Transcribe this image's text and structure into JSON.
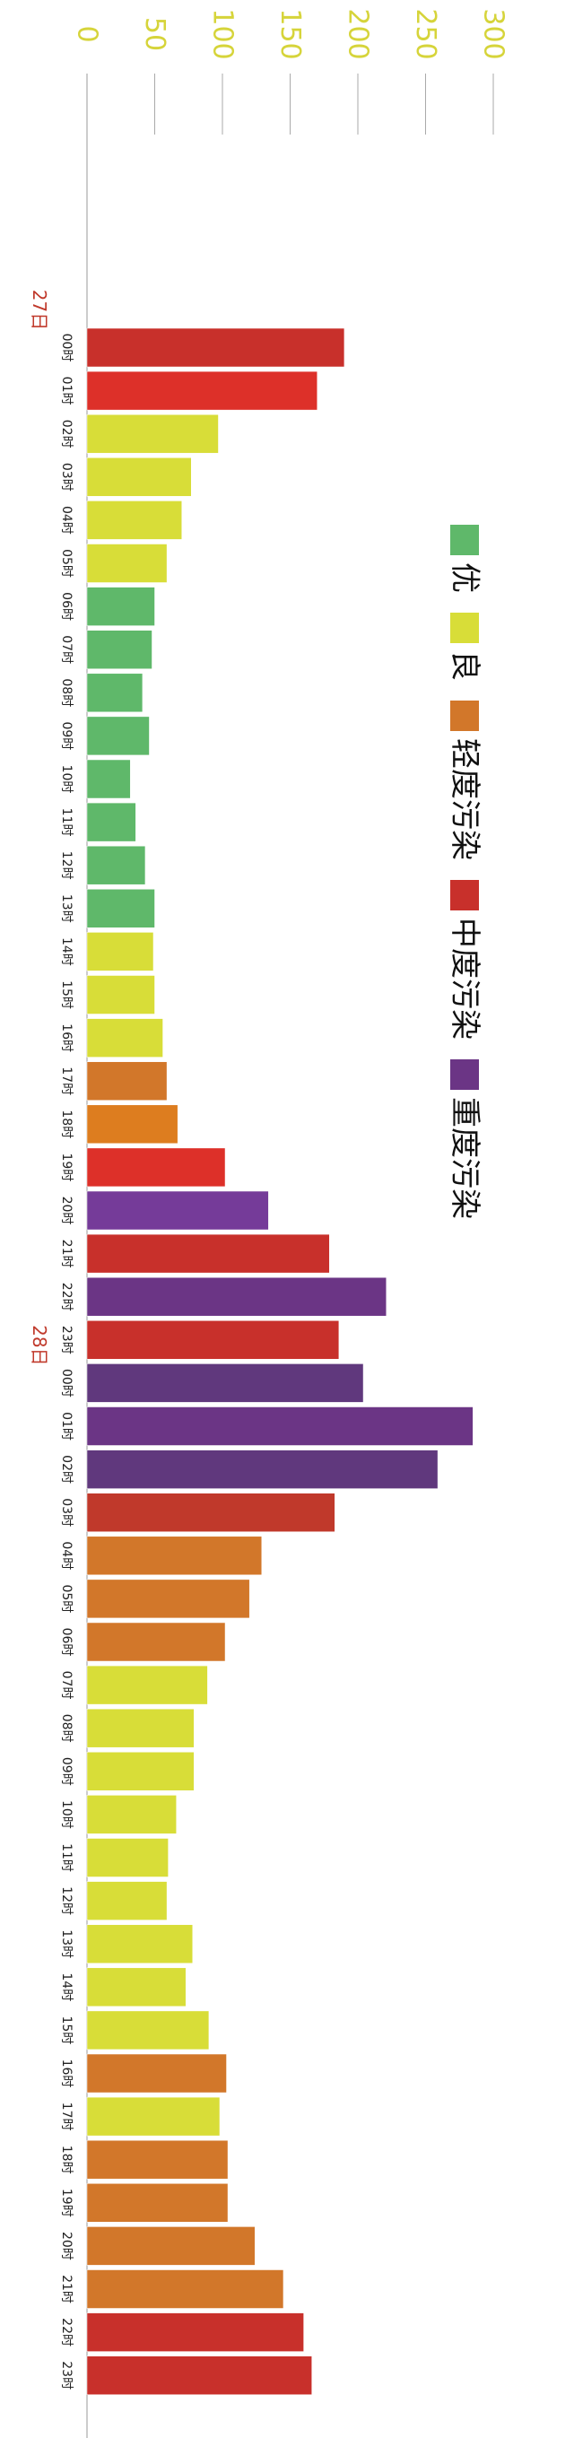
{
  "chart_data": {
    "type": "bar",
    "orientation": "horizontal",
    "xlim": [
      0,
      300
    ],
    "ticks": [
      0,
      50,
      100,
      150,
      200,
      250,
      300
    ],
    "grid": true,
    "legend_placement": "right, vertical",
    "legend": [
      {
        "name": "优",
        "color": "#5fb86a"
      },
      {
        "name": "良",
        "color": "#d8dd38"
      },
      {
        "name": "轻度污染",
        "color": "#d2772a"
      },
      {
        "name": "中度污染",
        "color": "#c8302b"
      },
      {
        "name": "重度污染",
        "color": "#6b3585"
      }
    ],
    "day_labels": [
      {
        "label": "27日",
        "index": 0
      },
      {
        "label": "28日",
        "index": 24
      }
    ],
    "categories": [
      "00时",
      "01时",
      "02时",
      "03时",
      "04时",
      "05时",
      "06时",
      "07时",
      "08时",
      "09时",
      "10时",
      "11时",
      "12时",
      "13时",
      "14时",
      "15时",
      "16时",
      "17时",
      "18时",
      "19时",
      "20时",
      "21时",
      "22时",
      "23时",
      "00时",
      "01时",
      "02时",
      "03时",
      "04时",
      "05时",
      "06时",
      "07时",
      "08时",
      "09时",
      "10时",
      "11时",
      "12时",
      "13时",
      "14时",
      "15时",
      "16时",
      "17时",
      "18时",
      "19时",
      "20时",
      "21时",
      "22时",
      "23时"
    ],
    "values": [
      190,
      170,
      97,
      77,
      70,
      59,
      50,
      48,
      41,
      46,
      32,
      36,
      43,
      50,
      49,
      50,
      56,
      59,
      67,
      102,
      134,
      179,
      221,
      186,
      204,
      285,
      259,
      183,
      129,
      120,
      102,
      89,
      79,
      79,
      66,
      60,
      59,
      78,
      73,
      90,
      103,
      98,
      104,
      104,
      124,
      145,
      160,
      166
    ],
    "colors": [
      "#c8302b",
      "#dd3029",
      "#d8dd38",
      "#d8dd38",
      "#d8dd38",
      "#d8dd38",
      "#5fb86a",
      "#5fb86a",
      "#5fb86a",
      "#5fb86a",
      "#5fb86a",
      "#5fb86a",
      "#5fb86a",
      "#5fb86a",
      "#d8dd38",
      "#d8dd38",
      "#d8dd38",
      "#d2772a",
      "#dd7d1f",
      "#dd3029",
      "#753b99",
      "#c8302b",
      "#6b3585",
      "#c8302b",
      "#60387d",
      "#6b3585",
      "#60387d",
      "#c0392b",
      "#d2772a",
      "#d2772a",
      "#d2772a",
      "#d8dd38",
      "#d8dd38",
      "#d8dd38",
      "#d8dd38",
      "#d8dd38",
      "#d8dd38",
      "#d8dd38",
      "#d8dd38",
      "#d8dd38",
      "#d2772a",
      "#d8dd38",
      "#d2772a",
      "#d2772a",
      "#d2772a",
      "#d2772a",
      "#c8302b",
      "#c8302b"
    ]
  }
}
